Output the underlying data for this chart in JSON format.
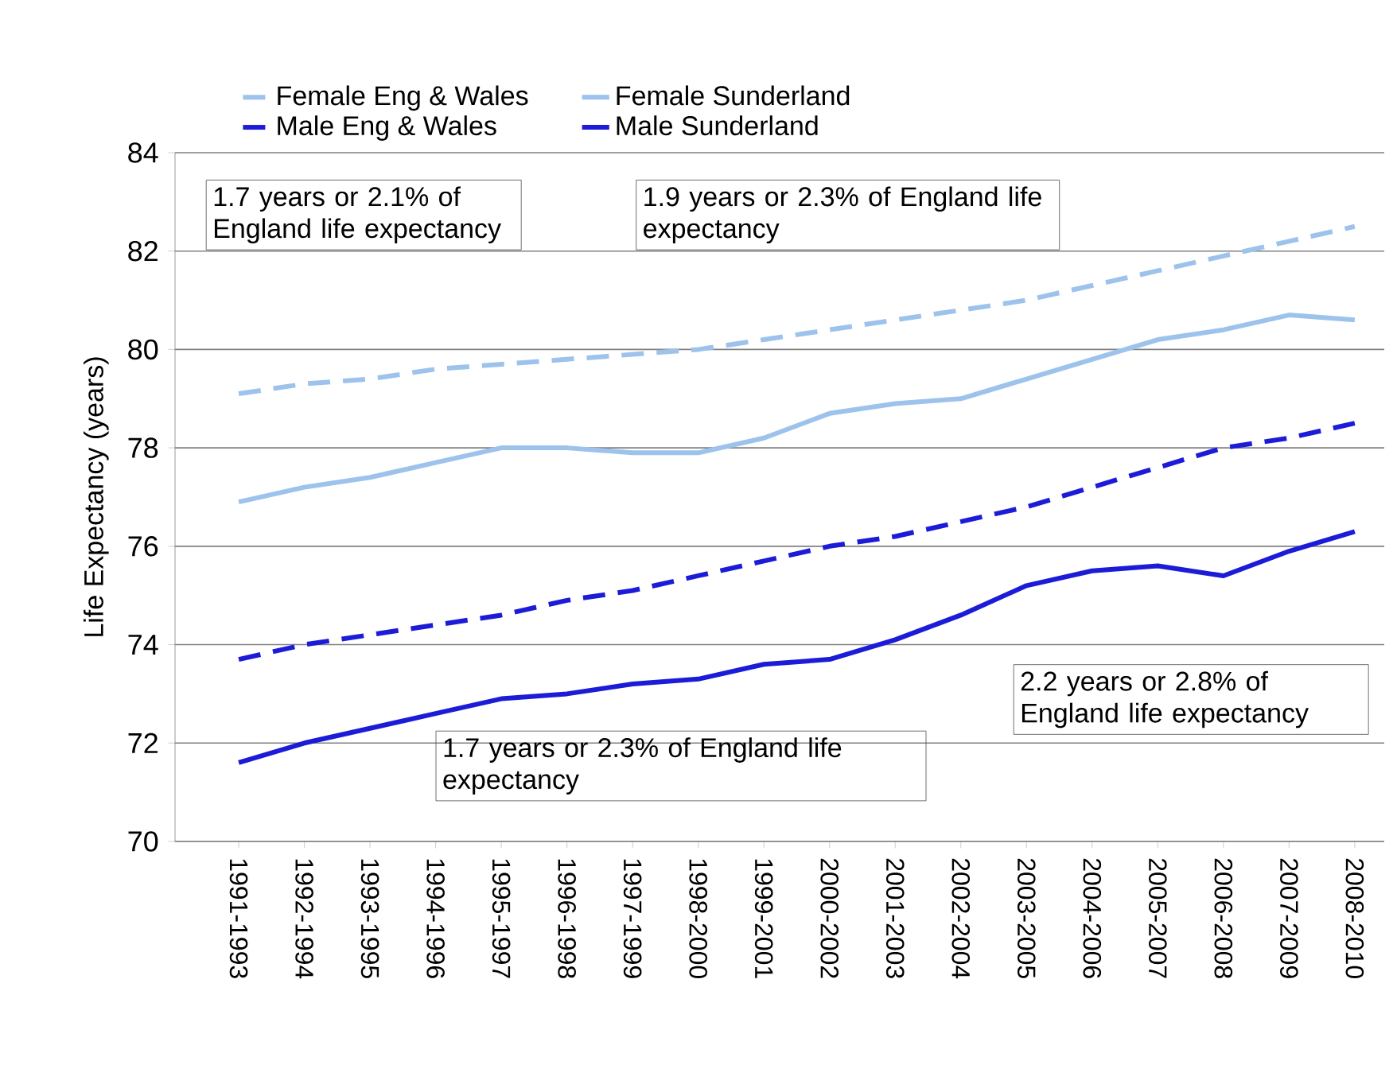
{
  "chart_data": {
    "type": "line",
    "ylabel": "Life Expectancy (years)",
    "categories": [
      "1991-1993",
      "1992-1994",
      "1993-1995",
      "1994-1996",
      "1995-1997",
      "1996-1998",
      "1997-1999",
      "1998-2000",
      "1999-2001",
      "2000-2002",
      "2001-2003",
      "2002-2004",
      "2003-2005",
      "2004-2006",
      "2005-2007",
      "2006-2008",
      "2007-2009",
      "2008-2010"
    ],
    "series": [
      {
        "name": "Female Eng & Wales",
        "color": "#9dc3ec",
        "line_style": "dashed",
        "values": [
          79.1,
          79.3,
          79.4,
          79.6,
          79.7,
          79.8,
          79.9,
          80.0,
          80.2,
          80.4,
          80.6,
          80.8,
          81.0,
          81.3,
          81.6,
          81.9,
          82.2,
          82.5
        ]
      },
      {
        "name": "Female Sunderland",
        "color": "#9dc3ec",
        "line_style": "solid",
        "values": [
          76.9,
          77.2,
          77.4,
          77.7,
          78.0,
          78.0,
          77.9,
          77.9,
          78.2,
          78.7,
          78.9,
          79.0,
          79.4,
          79.8,
          80.2,
          80.4,
          80.7,
          80.6
        ]
      },
      {
        "name": "Male Eng & Wales",
        "color": "#1c1cd8",
        "line_style": "dashed",
        "values": [
          73.7,
          74.0,
          74.2,
          74.4,
          74.6,
          74.9,
          75.1,
          75.4,
          75.7,
          76.0,
          76.2,
          76.5,
          76.8,
          77.2,
          77.6,
          78.0,
          78.2,
          78.5
        ]
      },
      {
        "name": "Male Sunderland",
        "color": "#1c1cd8",
        "line_style": "solid",
        "values": [
          71.6,
          72.0,
          72.3,
          72.6,
          72.9,
          73.0,
          73.2,
          73.3,
          73.6,
          73.7,
          74.1,
          74.6,
          75.2,
          75.5,
          75.6,
          75.4,
          75.9,
          76.3
        ]
      }
    ],
    "ylim": [
      70,
      84
    ],
    "yticks": [
      70,
      72,
      74,
      76,
      78,
      80,
      82,
      84
    ],
    "grid": "y",
    "legend": "top",
    "marker": "none",
    "annotations": [
      "1.7 years or 2.1% of England life expectancy",
      "1.9 years or 2.3% of England life expectancy",
      "1.7 years or 2.3% of England life expectancy",
      "2.2 years or 2.8% of England life expectancy"
    ]
  }
}
